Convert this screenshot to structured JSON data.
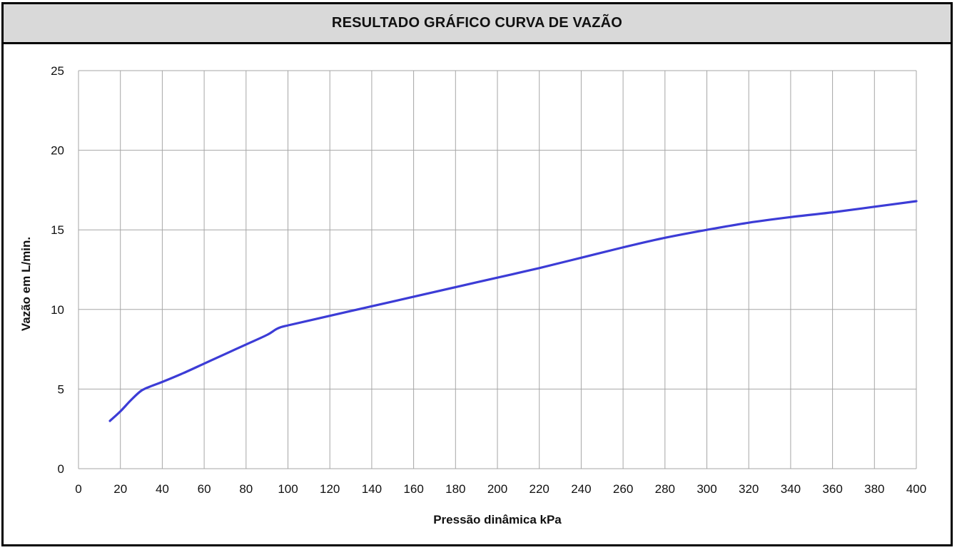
{
  "chart_data": {
    "type": "line",
    "title": "RESULTADO GRÁFICO CURVA DE VAZÃO",
    "xlabel": "Pressão dinâmica kPa",
    "ylabel": "Vazão em L/min.",
    "xlim": [
      0,
      400
    ],
    "ylim": [
      0,
      25
    ],
    "xticks": [
      0,
      20,
      40,
      60,
      80,
      100,
      120,
      140,
      160,
      180,
      200,
      220,
      240,
      260,
      280,
      300,
      320,
      340,
      360,
      380,
      400
    ],
    "yticks": [
      0,
      5,
      10,
      15,
      20,
      25
    ],
    "grid": true,
    "series_color": "#3c3cd6",
    "series": [
      {
        "x": [
          15,
          20,
          25,
          30,
          35,
          40,
          50,
          60,
          70,
          80,
          90,
          95,
          100,
          120,
          140,
          160,
          180,
          200,
          220,
          240,
          260,
          280,
          300,
          320,
          340,
          360,
          380,
          400
        ],
        "y": [
          3.0,
          3.6,
          4.3,
          4.9,
          5.2,
          5.45,
          6.0,
          6.6,
          7.2,
          7.8,
          8.4,
          8.8,
          9.0,
          9.6,
          10.2,
          10.8,
          11.4,
          12.0,
          12.6,
          13.25,
          13.9,
          14.5,
          15.0,
          15.45,
          15.8,
          16.1,
          16.45,
          16.8
        ]
      }
    ]
  }
}
